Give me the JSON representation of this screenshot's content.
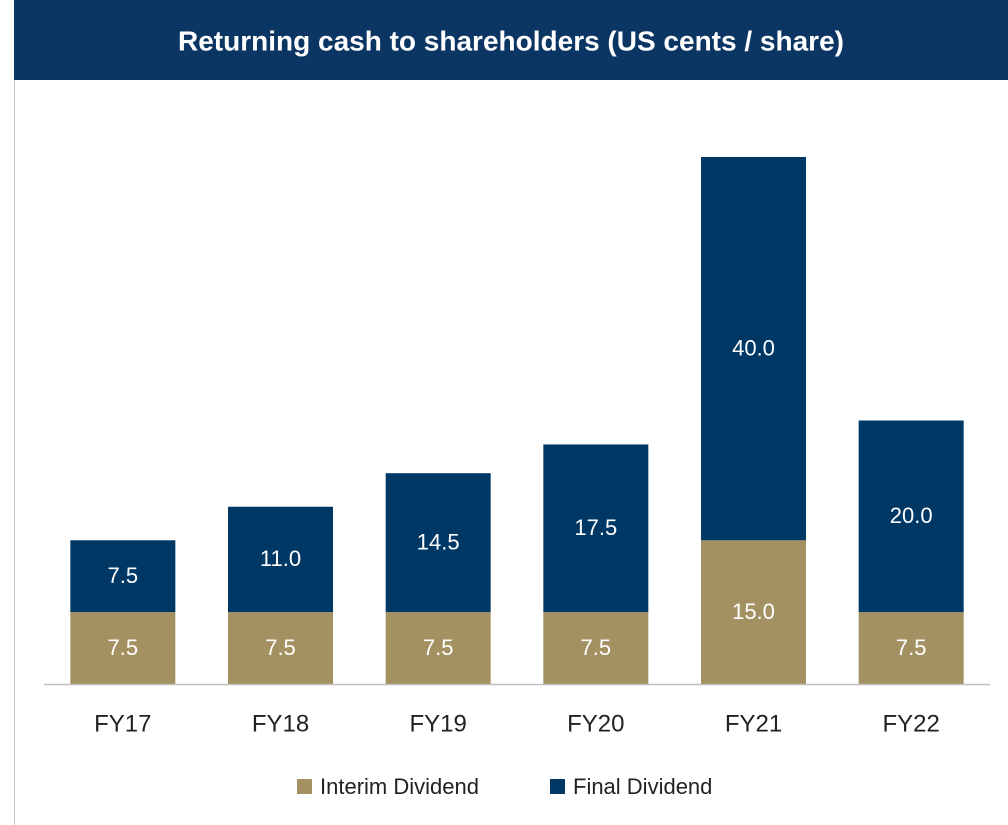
{
  "chart_data": {
    "type": "bar",
    "stacked": true,
    "title": "Returning cash to shareholders (US cents / share)",
    "categories": [
      "FY17",
      "FY18",
      "FY19",
      "FY20",
      "FY21",
      "FY22"
    ],
    "series": [
      {
        "name": "Interim Dividend",
        "color": "#a39161",
        "values": [
          7.5,
          7.5,
          7.5,
          7.5,
          15,
          7.5
        ],
        "value_labels": [
          "7.5",
          "7.5",
          "7.5",
          "7.5",
          "15.0",
          "7.5"
        ]
      },
      {
        "name": "Final Dividend",
        "color": "#003865",
        "values": [
          7.5,
          11,
          14.5,
          17.5,
          40,
          20
        ],
        "value_labels": [
          "7.5",
          "11.0",
          "14.5",
          "17.5",
          "40.0",
          "20.0"
        ]
      }
    ],
    "ylim": [
      0,
      55
    ]
  }
}
